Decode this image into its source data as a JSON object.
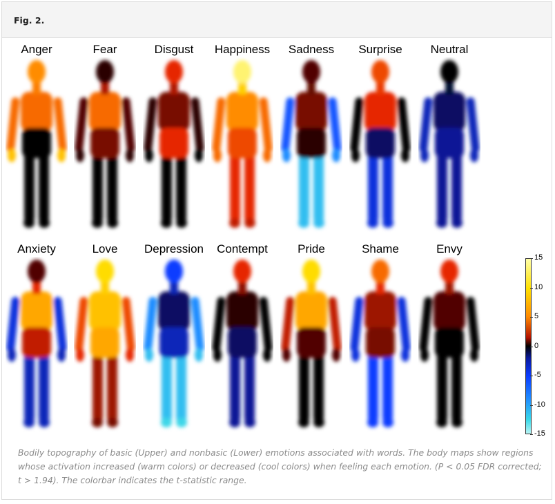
{
  "figure": {
    "label": "Fig. 2.",
    "caption": "Bodily topography of basic (Upper) and nonbasic (Lower) emotions associated with words. The body maps show regions whose activation increased (warm colors) or decreased (cool colors) when feeling each emotion. (P < 0.05 FDR corrected; t > 1.94). The colorbar indicates the t-statistic range."
  },
  "rows": [
    {
      "name": "basic",
      "bodies": [
        {
          "label": "Anger",
          "head": 9,
          "upper": 8,
          "arms": 8,
          "hands": 11,
          "abdomen": 0,
          "legs": 0,
          "feet": 0
        },
        {
          "label": "Fear",
          "head": 1,
          "upper": 8,
          "arms": 2,
          "hands": 1,
          "abdomen": 3,
          "legs": 0,
          "feet": 0
        },
        {
          "label": "Disgust",
          "head": 6,
          "upper": 3,
          "arms": 1,
          "hands": 0,
          "abdomen": 6,
          "legs": 0,
          "feet": 0
        },
        {
          "label": "Happiness",
          "head": 14,
          "upper": 9,
          "arms": 8,
          "hands": 8,
          "abdomen": 7,
          "legs": 6,
          "feet": 5
        },
        {
          "label": "Sadness",
          "head": 2,
          "upper": 3,
          "arms": -7,
          "hands": -9,
          "abdomen": 1,
          "legs": -11,
          "feet": -11
        },
        {
          "label": "Surprise",
          "head": 7,
          "upper": 6,
          "arms": 0,
          "hands": 0,
          "abdomen": -2,
          "legs": -5,
          "feet": -5
        },
        {
          "label": "Neutral",
          "head": 0,
          "upper": -2,
          "arms": -4,
          "hands": -4,
          "abdomen": -3,
          "legs": -3,
          "feet": -3
        }
      ]
    },
    {
      "name": "nonbasic",
      "bodies": [
        {
          "label": "Anxiety",
          "head": 2,
          "upper": 10,
          "arms": -5,
          "hands": -4,
          "abdomen": 5,
          "legs": -4,
          "feet": -4
        },
        {
          "label": "Love",
          "head": 12,
          "upper": 11,
          "arms": 7,
          "hands": 6,
          "abdomen": 10,
          "legs": 4,
          "feet": 3
        },
        {
          "label": "Depression",
          "head": -6,
          "upper": -2,
          "arms": -9,
          "hands": -11,
          "abdomen": -4,
          "legs": -11,
          "feet": -12
        },
        {
          "label": "Contempt",
          "head": 6,
          "upper": 1,
          "arms": 0,
          "hands": 0,
          "abdomen": -2,
          "legs": -3,
          "feet": -3
        },
        {
          "label": "Pride",
          "head": 12,
          "upper": 10,
          "arms": 5,
          "hands": 2,
          "abdomen": 2,
          "legs": 0,
          "feet": 0
        },
        {
          "label": "Shame",
          "head": 8,
          "upper": 4,
          "arms": -5,
          "hands": -5,
          "abdomen": 3,
          "legs": -6,
          "feet": -6
        },
        {
          "label": "Envy",
          "head": 6,
          "upper": 2,
          "arms": 0,
          "hands": 0,
          "abdomen": 0,
          "legs": 0,
          "feet": 0
        }
      ]
    }
  ],
  "colorbar": {
    "min": -15,
    "max": 15,
    "ticks": [
      "15",
      "10",
      "5",
      "0",
      "-5",
      "-10",
      "-15"
    ]
  }
}
